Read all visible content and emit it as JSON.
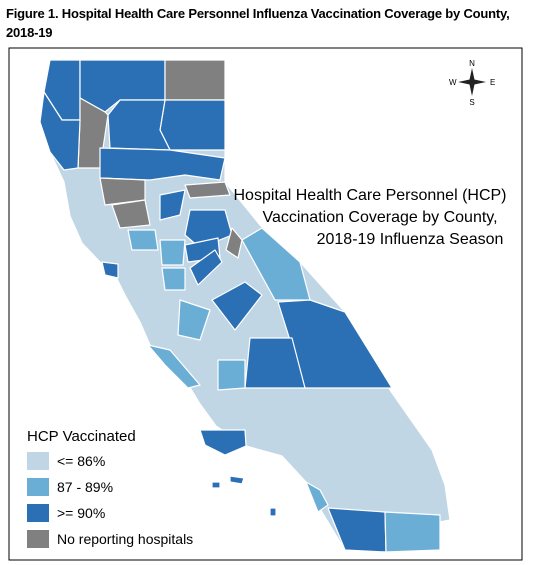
{
  "figure_title": "Figure 1. Hospital Health Care Personnel Influenza Vaccination Coverage by County, 2018-19",
  "map_title": [
    "Hospital Health Care Personnel (HCP)",
    "Vaccination Coverage by County,",
    "2018-19 Influenza Season"
  ],
  "compass": {
    "north": "N",
    "east": "E",
    "south": "S",
    "west": "W"
  },
  "legend": {
    "title": "HCP Vaccinated",
    "items": [
      {
        "label": "<= 86%",
        "color": "#c1d6e5"
      },
      {
        "label": "87 - 89%",
        "color": "#6aaed6"
      },
      {
        "label": ">= 90%",
        "color": "#2b6fb5"
      },
      {
        "label": "No reporting hospitals",
        "color": "#808080"
      }
    ]
  }
}
